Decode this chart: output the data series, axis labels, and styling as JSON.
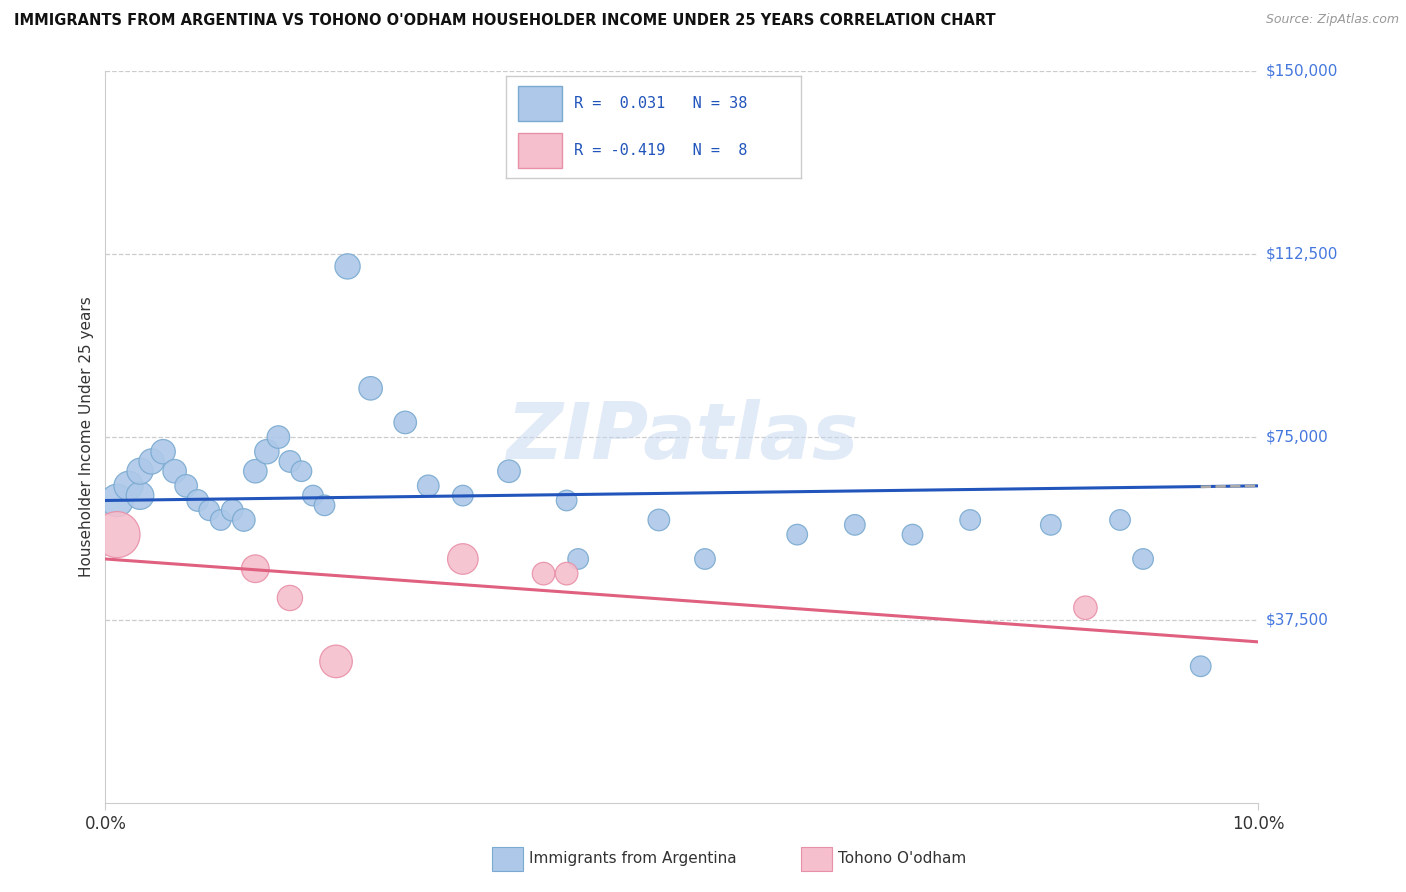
{
  "title": "IMMIGRANTS FROM ARGENTINA VS TOHONO O'ODHAM HOUSEHOLDER INCOME UNDER 25 YEARS CORRELATION CHART",
  "source": "Source: ZipAtlas.com",
  "ylabel": "Householder Income Under 25 years",
  "xlim": [
    0.0,
    0.1
  ],
  "ylim": [
    0,
    150000
  ],
  "ytick_labels": [
    "$150,000",
    "$112,500",
    "$75,000",
    "$37,500"
  ],
  "ytick_values": [
    150000,
    112500,
    75000,
    37500
  ],
  "watermark": "ZIPatlas",
  "blue_color": "#adc8e8",
  "blue_edge": "#7aaad0",
  "pink_color": "#f5bfcd",
  "pink_edge": "#e890a8",
  "trend_blue": "#2255bb",
  "trend_pink": "#e06080",
  "legend_r_blue": "0.031",
  "legend_n_blue": "38",
  "legend_r_pink": "-0.419",
  "legend_n_pink": "8",
  "blue_x": [
    0.001,
    0.002,
    0.003,
    0.003,
    0.004,
    0.005,
    0.006,
    0.007,
    0.008,
    0.009,
    0.01,
    0.011,
    0.012,
    0.013,
    0.014,
    0.015,
    0.016,
    0.017,
    0.018,
    0.019,
    0.021,
    0.023,
    0.026,
    0.028,
    0.031,
    0.035,
    0.04,
    0.041,
    0.048,
    0.052,
    0.06,
    0.065,
    0.07,
    0.075,
    0.082,
    0.088,
    0.09,
    0.095
  ],
  "blue_y": [
    62000,
    65000,
    63000,
    68000,
    70000,
    72000,
    68000,
    65000,
    62000,
    60000,
    58000,
    60000,
    58000,
    68000,
    72000,
    75000,
    70000,
    68000,
    63000,
    61000,
    110000,
    85000,
    78000,
    65000,
    63000,
    68000,
    62000,
    50000,
    58000,
    50000,
    55000,
    57000,
    55000,
    58000,
    57000,
    58000,
    50000,
    28000
  ],
  "blue_sizes": [
    250,
    200,
    180,
    160,
    150,
    140,
    130,
    120,
    110,
    100,
    100,
    110,
    120,
    130,
    140,
    120,
    110,
    100,
    100,
    100,
    150,
    130,
    120,
    110,
    100,
    120,
    100,
    100,
    110,
    100,
    100,
    100,
    100,
    100,
    100,
    100,
    100,
    100
  ],
  "pink_x": [
    0.001,
    0.013,
    0.016,
    0.02,
    0.031,
    0.038,
    0.04,
    0.085
  ],
  "pink_y": [
    55000,
    48000,
    42000,
    29000,
    50000,
    47000,
    47000,
    40000
  ],
  "pink_sizes": [
    500,
    180,
    150,
    250,
    220,
    120,
    120,
    130
  ],
  "blue_trend_x": [
    0.0,
    0.1
  ],
  "blue_trend_y": [
    62000,
    65000
  ],
  "pink_trend_x": [
    0.0,
    0.1
  ],
  "pink_trend_y": [
    50000,
    33000
  ]
}
